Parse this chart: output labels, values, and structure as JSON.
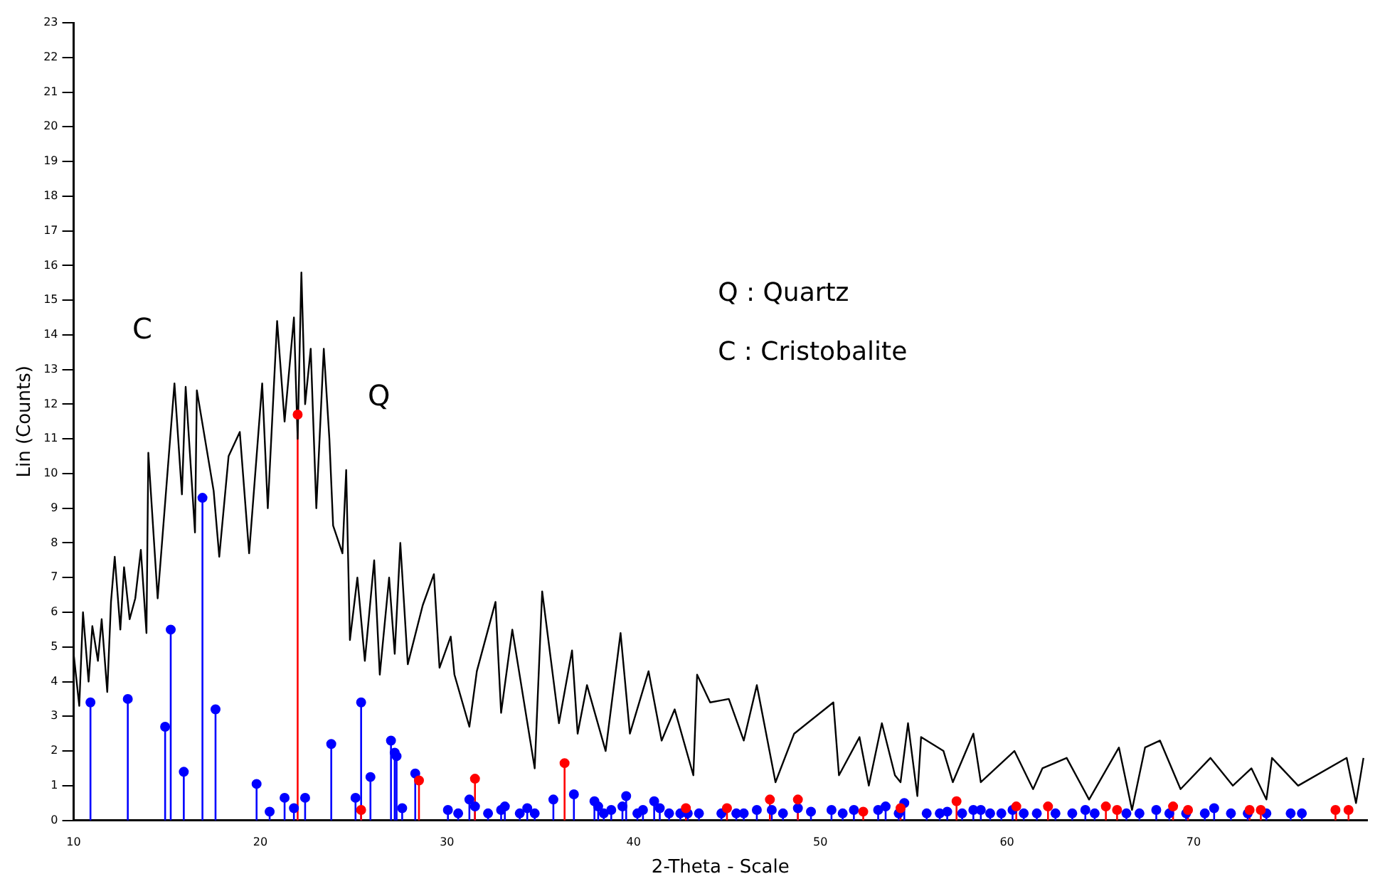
{
  "chart_data": {
    "type": "line",
    "xlabel": "2-Theta - Scale",
    "ylabel": "Lin (Counts)",
    "xlim": [
      10,
      79.3
    ],
    "xticks": [
      10,
      20,
      30,
      40,
      50,
      60,
      70
    ],
    "ylim": [
      0,
      23
    ],
    "yticks": [
      0,
      1,
      2,
      3,
      4,
      5,
      6,
      7,
      8,
      9,
      10,
      11,
      12,
      13,
      14,
      15,
      16,
      17,
      18,
      19,
      20,
      21,
      22,
      23
    ],
    "grid": false,
    "legend": false,
    "annotations": [
      "C",
      "Q",
      "Q : Quartz",
      "C : Cristobalite"
    ],
    "series": [
      {
        "color": "#000000",
        "marker": "none",
        "x": [
          10,
          10.3,
          10.5,
          10.8,
          11,
          11.3,
          11.5,
          11.8,
          12,
          12.2,
          12.5,
          12.7,
          13,
          13.3,
          13.6,
          13.9,
          14,
          14.5,
          15.4,
          15.8,
          16,
          16.5,
          16.6,
          17.5,
          17.8,
          18.3,
          18.9,
          19.4,
          20.1,
          20.4,
          20.9,
          21.3,
          21.8,
          22,
          22.2,
          22.4,
          22.7,
          23,
          23.4,
          23.7,
          23.9,
          24.4,
          24.6,
          24.8,
          25.2,
          25.6,
          26.1,
          26.4,
          26.9,
          27.2,
          27.5,
          27.9,
          28.7,
          29.3,
          29.6,
          30.2,
          30.4,
          31.2,
          31.6,
          32.6,
          32.9,
          33.5,
          34.7,
          35.1,
          36,
          36.7,
          37,
          37.5,
          38.5,
          39.3,
          39.8,
          40.8,
          41.5,
          42.2,
          43.2,
          43.4,
          44.1,
          45.1,
          45.9,
          46.6,
          47.6,
          48.6,
          50.7,
          51,
          52.1,
          52.6,
          53.3,
          54,
          54.3,
          54.7,
          55.2,
          55.4,
          56.6,
          57.1,
          58.2,
          58.6,
          60.4,
          61.4,
          61.9,
          63.2,
          64.4,
          66,
          66.7,
          67.4,
          68.2,
          69.3,
          70.9,
          72.1,
          73.1,
          73.9,
          74.2,
          75.6,
          78.2,
          78.7,
          79.1
        ],
        "values": [
          4.8,
          3.3,
          6,
          4,
          5.6,
          4.6,
          5.8,
          3.7,
          6.3,
          7.6,
          5.5,
          7.3,
          5.8,
          6.4,
          7.8,
          5.4,
          10.6,
          6.4,
          12.6,
          9.4,
          12.5,
          8.3,
          12.4,
          9.5,
          7.6,
          10.5,
          11.2,
          7.7,
          12.6,
          9,
          14.4,
          11.5,
          14.5,
          11,
          15.8,
          12,
          13.6,
          9,
          13.6,
          11,
          8.5,
          7.7,
          10.1,
          5.2,
          7,
          4.6,
          7.5,
          4.2,
          7,
          4.8,
          8,
          4.5,
          6.2,
          7.1,
          4.4,
          5.3,
          4.2,
          2.7,
          4.3,
          6.3,
          3.1,
          5.5,
          1.5,
          6.6,
          2.8,
          4.9,
          2.5,
          3.9,
          2,
          5.4,
          2.5,
          4.3,
          2.3,
          3.2,
          1.3,
          4.2,
          3.4,
          3.5,
          2.3,
          3.9,
          1.1,
          2.5,
          3.4,
          1.3,
          2.4,
          1,
          2.8,
          1.3,
          1.1,
          2.8,
          0.7,
          2.4,
          2,
          1.1,
          2.5,
          1.1,
          2,
          0.9,
          1.5,
          1.8,
          0.6,
          2.1,
          0.3,
          2.1,
          2.3,
          0.9,
          1.8,
          1,
          1.5,
          0.6,
          1.8,
          1,
          1.8,
          0.5,
          1.8
        ]
      },
      {
        "type": "lollipop",
        "color": "#0000ff",
        "marker": "circle",
        "x": [
          10.9,
          12.9,
          14.9,
          15.2,
          15.9,
          16.9,
          17.6,
          19.8,
          20.5,
          21.3,
          21.8,
          22.4,
          23.8,
          25.1,
          25.4,
          25.9,
          27,
          27.2,
          27.3,
          27.6,
          28.3,
          30.05,
          30.6,
          31.2,
          31.5,
          32.2,
          32.9,
          33.1,
          33.9,
          34.3,
          34.7,
          35.7,
          36.8,
          37.9,
          38.1,
          38.4,
          38.8,
          39.4,
          39.6,
          40.2,
          40.5,
          41.1,
          41.4,
          41.9,
          42.5,
          42.9,
          43.5,
          44.7,
          45.5,
          45.9,
          46.6,
          47.4,
          48,
          48.8,
          49.5,
          50.6,
          51.2,
          51.8,
          53.1,
          53.5,
          54.2,
          54.5,
          55.7,
          56.4,
          56.8,
          57.6,
          58.2,
          58.6,
          59.1,
          59.7,
          60.3,
          60.9,
          61.6,
          62.6,
          63.5,
          64.2,
          64.7,
          66.4,
          67.1,
          68,
          68.7,
          69.6,
          70.6,
          71.1,
          72,
          72.9,
          73.9,
          75.2,
          75.8
        ],
        "values": [
          3.4,
          3.5,
          2.7,
          5.5,
          1.4,
          9.3,
          3.2,
          1.05,
          0.25,
          0.65,
          0.35,
          0.65,
          2.2,
          0.65,
          3.4,
          1.25,
          2.3,
          1.95,
          1.85,
          0.35,
          1.35,
          0.3,
          0.2,
          0.6,
          0.4,
          0.2,
          0.3,
          0.4,
          0.2,
          0.35,
          0.2,
          0.6,
          0.75,
          0.55,
          0.4,
          0.2,
          0.3,
          0.4,
          0.7,
          0.2,
          0.3,
          0.55,
          0.35,
          0.2,
          0.2,
          0.2,
          0.2,
          0.2,
          0.2,
          0.2,
          0.3,
          0.3,
          0.2,
          0.35,
          0.25,
          0.3,
          0.2,
          0.3,
          0.3,
          0.4,
          0.2,
          0.5,
          0.2,
          0.2,
          0.25,
          0.2,
          0.3,
          0.3,
          0.2,
          0.2,
          0.3,
          0.2,
          0.2,
          0.2,
          0.2,
          0.3,
          0.2,
          0.2,
          0.2,
          0.3,
          0.2,
          0.2,
          0.2,
          0.35,
          0.2,
          0.2,
          0.2,
          0.2,
          0.2
        ]
      },
      {
        "type": "lollipop",
        "color": "#ff0000",
        "marker": "circle",
        "x": [
          22,
          25.4,
          28.5,
          31.5,
          36.3,
          42.8,
          45,
          47.3,
          48.8,
          52.3,
          54.3,
          57.3,
          60.5,
          62.2,
          65.3,
          65.9,
          68.9,
          69.7,
          73,
          73.6,
          77.6,
          78.3
        ],
        "values": [
          11.7,
          0.3,
          1.15,
          1.2,
          1.65,
          0.35,
          0.35,
          0.6,
          0.6,
          0.25,
          0.35,
          0.55,
          0.4,
          0.4,
          0.4,
          0.3,
          0.4,
          0.3,
          0.3,
          0.3,
          0.3,
          0.3
        ]
      }
    ]
  }
}
